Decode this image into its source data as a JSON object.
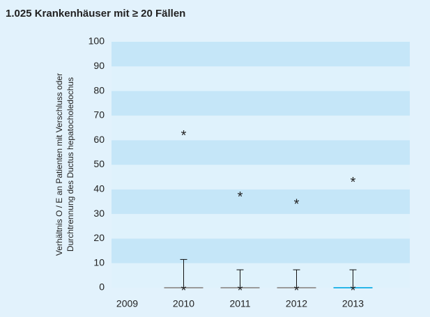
{
  "chart_data": {
    "type": "box",
    "title": "1.025 Krankenhäuser mit ≥ 20 Fällen",
    "y_label": [
      "Verhältnis O / E an Patienten mit Verschluss oder",
      "Durchtrennung des Ductus hepatocholedochus"
    ],
    "categories": [
      "2009",
      "2010",
      "2011",
      "2012",
      "2013"
    ],
    "min": [
      null,
      0,
      0,
      0,
      0
    ],
    "q1": [
      null,
      0,
      0,
      0,
      0
    ],
    "median": [
      null,
      0,
      0,
      0,
      0
    ],
    "q3": [
      null,
      0,
      0,
      0,
      0
    ],
    "whisker_high": [
      null,
      11.5,
      7.3,
      7.3,
      7.3
    ],
    "max": [
      null,
      63,
      38,
      35,
      44
    ],
    "colors": [
      "#9a9a9a",
      "#9a9a9a",
      "#9a9a9a",
      "#9a9a9a",
      "#29b6e8"
    ],
    "band_colors": [
      "#dff2fc",
      "#c5e6f8"
    ],
    "ylim": [
      0,
      100
    ],
    "yticks": [
      0,
      10,
      20,
      30,
      40,
      50,
      60,
      70,
      80,
      90,
      100
    ]
  }
}
